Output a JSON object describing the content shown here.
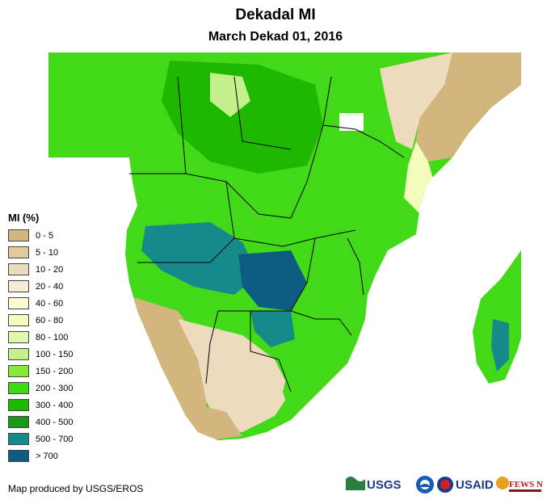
{
  "header": {
    "title": "Dekadal MI",
    "subtitle": "March Dekad 01, 2016"
  },
  "legend": {
    "title": "MI (%)",
    "items": [
      {
        "label": "0 - 5",
        "color": "#d2b67e"
      },
      {
        "label": "5 - 10",
        "color": "#e0c99b"
      },
      {
        "label": "10 - 20",
        "color": "#ecdcbd"
      },
      {
        "label": "20 - 40",
        "color": "#f6ecd6"
      },
      {
        "label": "40 - 60",
        "color": "#fdfbd4"
      },
      {
        "label": "60 - 80",
        "color": "#f3fbbd"
      },
      {
        "label": "80 - 100",
        "color": "#e2f7ae"
      },
      {
        "label": "100 - 150",
        "color": "#c3f08a"
      },
      {
        "label": "150 - 200",
        "color": "#88e83a"
      },
      {
        "label": "200 - 300",
        "color": "#42d918"
      },
      {
        "label": "300 - 400",
        "color": "#1fb800"
      },
      {
        "label": "400 - 500",
        "color": "#179a16"
      },
      {
        "label": "500 - 700",
        "color": "#168a8a"
      },
      {
        "label": "> 700",
        "color": "#0d5d82"
      }
    ]
  },
  "footer": {
    "credit": "Map produced by USGS/EROS",
    "logos": [
      "USGS",
      "NOAA",
      "USAID",
      "FEWS NET"
    ]
  }
}
